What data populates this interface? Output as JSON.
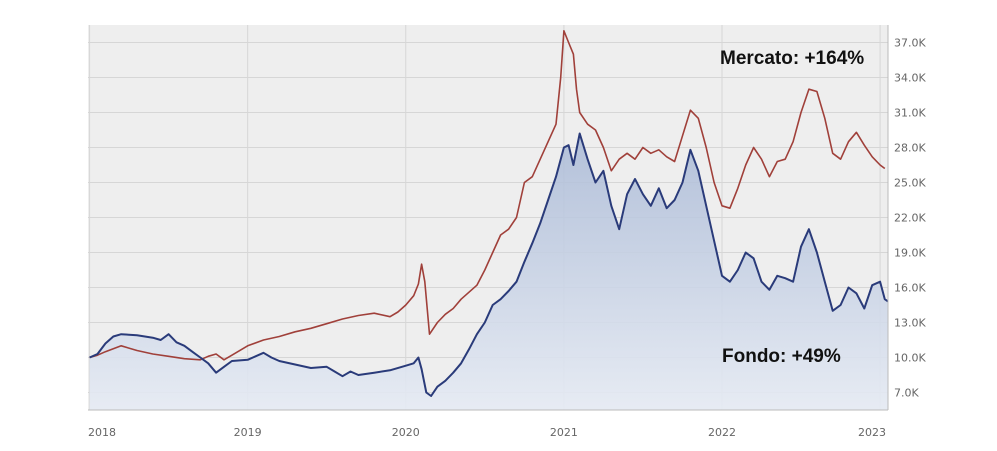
{
  "chart_data": {
    "type": "line",
    "title": "",
    "xlabel": "",
    "ylabel": "",
    "x_ticks": [
      "2018",
      "2019",
      "2020",
      "2021",
      "2022",
      "2023"
    ],
    "y_ticks": [
      "7.0K",
      "10.0K",
      "13.0K",
      "16.0K",
      "19.0K",
      "22.0K",
      "25.0K",
      "28.0K",
      "31.0K",
      "34.0K",
      "37.0K"
    ],
    "xlim": [
      2017.99,
      2023.05
    ],
    "ylim": [
      5500,
      38500
    ],
    "grid": true,
    "series": [
      {
        "name": "Mercato",
        "color": "#a0403a",
        "annotation": "Mercato: +164%",
        "points": [
          [
            2018.0,
            10000
          ],
          [
            2018.05,
            10200
          ],
          [
            2018.1,
            10500
          ],
          [
            2018.2,
            11000
          ],
          [
            2018.3,
            10600
          ],
          [
            2018.4,
            10300
          ],
          [
            2018.5,
            10100
          ],
          [
            2018.6,
            9900
          ],
          [
            2018.7,
            9800
          ],
          [
            2018.75,
            10100
          ],
          [
            2018.8,
            10300
          ],
          [
            2018.85,
            9800
          ],
          [
            2018.9,
            10200
          ],
          [
            2019.0,
            11000
          ],
          [
            2019.1,
            11500
          ],
          [
            2019.2,
            11800
          ],
          [
            2019.3,
            12200
          ],
          [
            2019.4,
            12500
          ],
          [
            2019.5,
            12900
          ],
          [
            2019.6,
            13300
          ],
          [
            2019.7,
            13600
          ],
          [
            2019.8,
            13800
          ],
          [
            2019.9,
            13500
          ],
          [
            2019.95,
            13900
          ],
          [
            2020.0,
            14500
          ],
          [
            2020.05,
            15300
          ],
          [
            2020.08,
            16300
          ],
          [
            2020.1,
            18000
          ],
          [
            2020.12,
            16500
          ],
          [
            2020.15,
            12000
          ],
          [
            2020.2,
            13000
          ],
          [
            2020.25,
            13700
          ],
          [
            2020.3,
            14200
          ],
          [
            2020.35,
            15000
          ],
          [
            2020.4,
            15600
          ],
          [
            2020.45,
            16200
          ],
          [
            2020.5,
            17500
          ],
          [
            2020.55,
            19000
          ],
          [
            2020.6,
            20500
          ],
          [
            2020.65,
            21000
          ],
          [
            2020.7,
            22000
          ],
          [
            2020.75,
            25000
          ],
          [
            2020.8,
            25500
          ],
          [
            2020.85,
            27000
          ],
          [
            2020.9,
            28500
          ],
          [
            2020.95,
            30000
          ],
          [
            2020.98,
            34000
          ],
          [
            2021.0,
            38000
          ],
          [
            2021.03,
            37000
          ],
          [
            2021.06,
            36000
          ],
          [
            2021.08,
            33000
          ],
          [
            2021.1,
            31000
          ],
          [
            2021.15,
            30000
          ],
          [
            2021.2,
            29500
          ],
          [
            2021.25,
            28000
          ],
          [
            2021.3,
            26000
          ],
          [
            2021.35,
            27000
          ],
          [
            2021.4,
            27500
          ],
          [
            2021.45,
            27000
          ],
          [
            2021.5,
            28000
          ],
          [
            2021.55,
            27500
          ],
          [
            2021.6,
            27800
          ],
          [
            2021.65,
            27200
          ],
          [
            2021.7,
            26800
          ],
          [
            2021.75,
            29000
          ],
          [
            2021.8,
            31200
          ],
          [
            2021.85,
            30500
          ],
          [
            2021.9,
            28000
          ],
          [
            2021.95,
            25000
          ],
          [
            2022.0,
            23000
          ],
          [
            2022.05,
            22800
          ],
          [
            2022.1,
            24500
          ],
          [
            2022.15,
            26500
          ],
          [
            2022.2,
            28000
          ],
          [
            2022.25,
            27000
          ],
          [
            2022.3,
            25500
          ],
          [
            2022.35,
            26800
          ],
          [
            2022.4,
            27000
          ],
          [
            2022.45,
            28500
          ],
          [
            2022.5,
            31000
          ],
          [
            2022.55,
            33000
          ],
          [
            2022.6,
            32800
          ],
          [
            2022.65,
            30500
          ],
          [
            2022.7,
            27500
          ],
          [
            2022.75,
            27000
          ],
          [
            2022.8,
            28500
          ],
          [
            2022.85,
            29300
          ],
          [
            2022.9,
            28200
          ],
          [
            2022.95,
            27200
          ],
          [
            2023.0,
            26500
          ],
          [
            2023.03,
            26200
          ]
        ]
      },
      {
        "name": "Fondo",
        "color": "#2a3b7a",
        "annotation": "Fondo: +49%",
        "points": [
          [
            2018.0,
            10000
          ],
          [
            2018.05,
            10300
          ],
          [
            2018.1,
            11200
          ],
          [
            2018.15,
            11800
          ],
          [
            2018.2,
            12000
          ],
          [
            2018.3,
            11900
          ],
          [
            2018.4,
            11700
          ],
          [
            2018.45,
            11500
          ],
          [
            2018.5,
            12000
          ],
          [
            2018.55,
            11300
          ],
          [
            2018.6,
            11000
          ],
          [
            2018.65,
            10500
          ],
          [
            2018.7,
            10000
          ],
          [
            2018.75,
            9500
          ],
          [
            2018.8,
            8700
          ],
          [
            2018.85,
            9200
          ],
          [
            2018.9,
            9700
          ],
          [
            2019.0,
            9800
          ],
          [
            2019.05,
            10100
          ],
          [
            2019.1,
            10400
          ],
          [
            2019.15,
            10000
          ],
          [
            2019.2,
            9700
          ],
          [
            2019.3,
            9400
          ],
          [
            2019.4,
            9100
          ],
          [
            2019.5,
            9200
          ],
          [
            2019.55,
            8800
          ],
          [
            2019.6,
            8400
          ],
          [
            2019.65,
            8800
          ],
          [
            2019.7,
            8500
          ],
          [
            2019.8,
            8700
          ],
          [
            2019.9,
            8900
          ],
          [
            2020.0,
            9300
          ],
          [
            2020.05,
            9500
          ],
          [
            2020.08,
            10000
          ],
          [
            2020.1,
            9000
          ],
          [
            2020.13,
            7000
          ],
          [
            2020.16,
            6700
          ],
          [
            2020.2,
            7500
          ],
          [
            2020.25,
            8000
          ],
          [
            2020.3,
            8700
          ],
          [
            2020.35,
            9500
          ],
          [
            2020.4,
            10700
          ],
          [
            2020.45,
            12000
          ],
          [
            2020.5,
            13000
          ],
          [
            2020.55,
            14500
          ],
          [
            2020.6,
            15000
          ],
          [
            2020.65,
            15700
          ],
          [
            2020.7,
            16500
          ],
          [
            2020.75,
            18200
          ],
          [
            2020.8,
            19800
          ],
          [
            2020.85,
            21500
          ],
          [
            2020.9,
            23500
          ],
          [
            2020.95,
            25500
          ],
          [
            2021.0,
            28000
          ],
          [
            2021.03,
            28200
          ],
          [
            2021.06,
            26500
          ],
          [
            2021.1,
            29200
          ],
          [
            2021.15,
            27000
          ],
          [
            2021.2,
            25000
          ],
          [
            2021.25,
            26000
          ],
          [
            2021.3,
            23000
          ],
          [
            2021.35,
            21000
          ],
          [
            2021.4,
            24000
          ],
          [
            2021.45,
            25300
          ],
          [
            2021.5,
            24000
          ],
          [
            2021.55,
            23000
          ],
          [
            2021.6,
            24500
          ],
          [
            2021.65,
            22800
          ],
          [
            2021.7,
            23500
          ],
          [
            2021.75,
            25000
          ],
          [
            2021.8,
            27800
          ],
          [
            2021.85,
            26000
          ],
          [
            2021.9,
            23000
          ],
          [
            2021.95,
            20000
          ],
          [
            2022.0,
            17000
          ],
          [
            2022.05,
            16500
          ],
          [
            2022.1,
            17500
          ],
          [
            2022.15,
            19000
          ],
          [
            2022.2,
            18500
          ],
          [
            2022.25,
            16500
          ],
          [
            2022.3,
            15800
          ],
          [
            2022.35,
            17000
          ],
          [
            2022.4,
            16800
          ],
          [
            2022.45,
            16500
          ],
          [
            2022.5,
            19500
          ],
          [
            2022.55,
            21000
          ],
          [
            2022.6,
            19000
          ],
          [
            2022.65,
            16500
          ],
          [
            2022.7,
            14000
          ],
          [
            2022.75,
            14500
          ],
          [
            2022.8,
            16000
          ],
          [
            2022.85,
            15500
          ],
          [
            2022.9,
            14200
          ],
          [
            2022.95,
            16200
          ],
          [
            2023.0,
            16500
          ],
          [
            2023.03,
            15000
          ],
          [
            2023.05,
            14800
          ]
        ]
      }
    ]
  }
}
